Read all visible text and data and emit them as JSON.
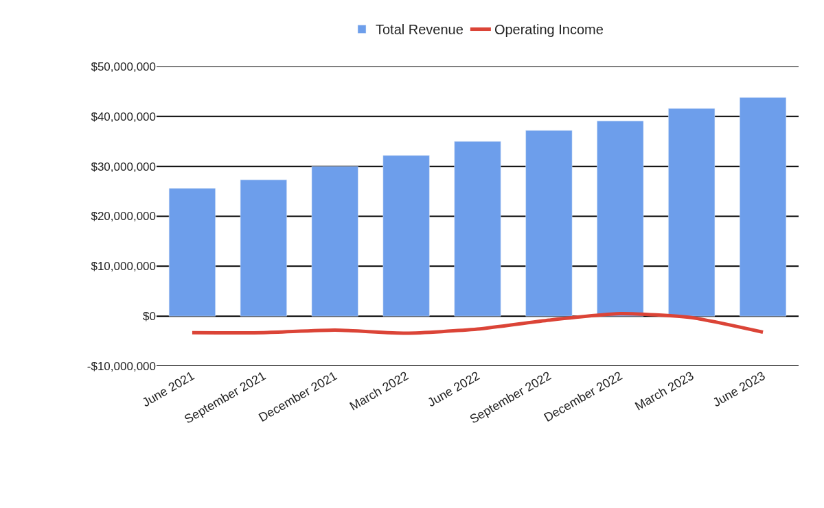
{
  "chart_data": {
    "type": "bar",
    "categories": [
      "June 2021",
      "September 2021",
      "December 2021",
      "March 2022",
      "June 2022",
      "September 2022",
      "December 2022",
      "March 2023",
      "June 2023"
    ],
    "series": [
      {
        "name": "Total Revenue",
        "color": "#6d9eeb",
        "values": [
          25600000,
          27300000,
          30000000,
          32200000,
          35000000,
          37200000,
          39100000,
          41600000,
          43800000
        ]
      },
      {
        "name": "Operating Income",
        "type": "line",
        "color": "#db4437",
        "values": [
          -3300000,
          -3300000,
          -2800000,
          -3400000,
          -2600000,
          -800000,
          500000,
          -300000,
          -3200000
        ]
      }
    ],
    "ylim": [
      -10000000,
      50000000
    ],
    "yticks": [
      {
        "value": -10000000,
        "label": "-$10,000,000"
      },
      {
        "value": 0,
        "label": "$0"
      },
      {
        "value": 10000000,
        "label": "$10,000,000"
      },
      {
        "value": 20000000,
        "label": "$20,000,000"
      },
      {
        "value": 30000000,
        "label": "$30,000,000"
      },
      {
        "value": 40000000,
        "label": "$40,000,000"
      },
      {
        "value": 50000000,
        "label": "$50,000,000"
      }
    ],
    "grid": "y",
    "legend": "top",
    "marker": "none",
    "line_style": "solid"
  }
}
